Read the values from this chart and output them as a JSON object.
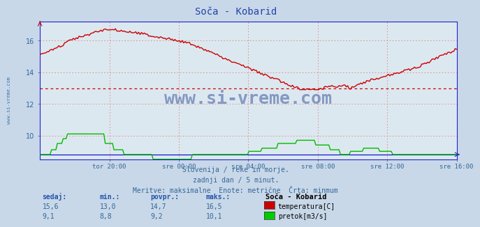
{
  "title": "Soča - Kobarid",
  "bg_color": "#c8d8e8",
  "plot_bg_color": "#dce8f0",
  "grid_color": "#e08080",
  "x_labels": [
    "tor 20:00",
    "sre 00:00",
    "sre 04:00",
    "sre 08:00",
    "sre 12:00",
    "sre 16:00"
  ],
  "x_ticks_norm": [
    0.1667,
    0.3333,
    0.5,
    0.6667,
    0.8333,
    1.0
  ],
  "ylim": [
    8.5,
    17.2
  ],
  "yticks": [
    10,
    12,
    14,
    16
  ],
  "temp_min_line": 13.0,
  "subtitle_lines": [
    "Slovenija / reke in morje.",
    "zadnji dan / 5 minut.",
    "Meritve: maksimalne  Enote: metrične  Črta: minmum"
  ],
  "legend_header": "Soča - Kobarid",
  "legend_rows": [
    {
      "sedaj": "15,6",
      "min": "13,0",
      "povpr": "14,7",
      "maks": "16,5",
      "color": "#cc0000",
      "label": "temperatura[C]"
    },
    {
      "sedaj": "9,1",
      "min": "8,8",
      "povpr": "9,2",
      "maks": "10,1",
      "color": "#00cc00",
      "label": "pretok[m3/s]"
    }
  ],
  "watermark": "www.si-vreme.com",
  "watermark_color": "#1a3a8a",
  "sidebar_text": "www.si-vreme.com",
  "sidebar_color": "#4477aa",
  "temp_color": "#cc0000",
  "flow_color": "#00bb00",
  "axis_color": "#2222cc",
  "tick_color": "#336699",
  "title_color": "#2244aa",
  "label_header_color": "#2255aa",
  "label_value_color": "#336699"
}
